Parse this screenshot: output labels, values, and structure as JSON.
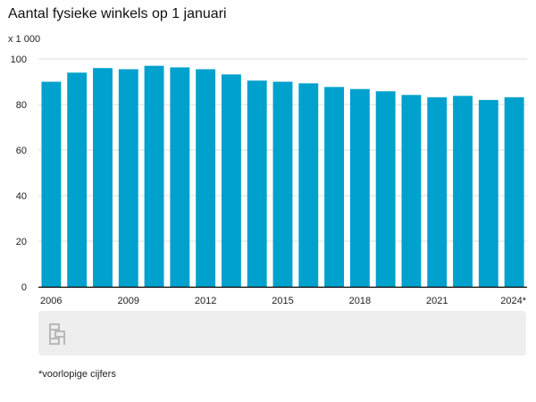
{
  "chart_data": {
    "type": "bar",
    "title": "Aantal fysieke winkels op 1 januari",
    "ylabel": "x 1 000",
    "xlabel": "",
    "ylim": [
      0,
      100
    ],
    "yticks": [
      0,
      20,
      40,
      60,
      80,
      100
    ],
    "grid": true,
    "categories": [
      "2006",
      "2007",
      "2008",
      "2009",
      "2010",
      "2011",
      "2012",
      "2013",
      "2014",
      "2015",
      "2016",
      "2017",
      "2018",
      "2019",
      "2020",
      "2021",
      "2022",
      "2023",
      "2024*"
    ],
    "xtick_labels": [
      "2006",
      "2009",
      "2012",
      "2015",
      "2018",
      "2021",
      "2024*"
    ],
    "values": [
      90,
      94,
      96,
      95.5,
      97,
      96.3,
      95.5,
      93.2,
      90.5,
      90,
      89.3,
      87.7,
      86.8,
      85.8,
      84.2,
      83.2,
      83.8,
      82,
      83.2
    ],
    "bar_color": "#00a1cd",
    "footnote": "*voorlopige cijfers"
  },
  "logo_name": "cbs-logo-icon"
}
